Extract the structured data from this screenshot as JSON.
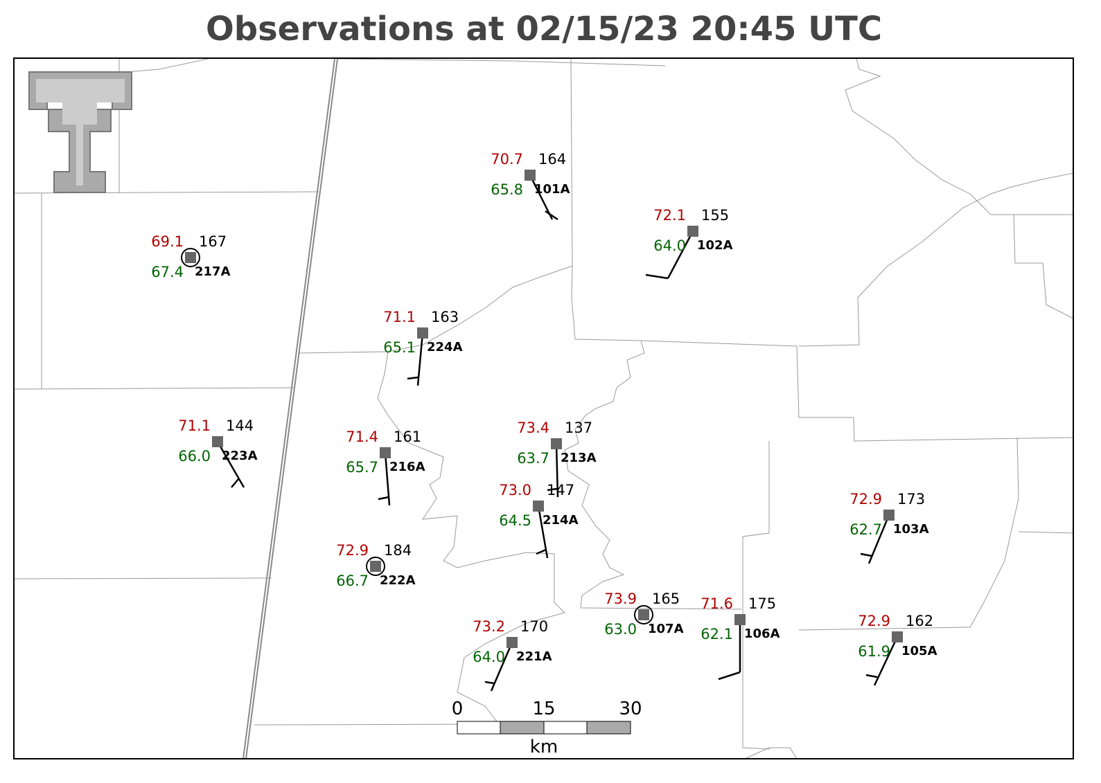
{
  "title": "Observations at 02/15/23 20:45 UTC",
  "stations": [
    {
      "id": "101A",
      "temperature": "70.7",
      "dewpoint": "65.8",
      "pressure": 164
    },
    {
      "id": "102A",
      "temperature": "72.1",
      "dewpoint": "64.0",
      "pressure": 155
    },
    {
      "id": "217A",
      "temperature": "69.1",
      "dewpoint": "67.4",
      "pressure": 167
    },
    {
      "id": "224A",
      "temperature": "71.1",
      "dewpoint": "65.1",
      "pressure": 163
    },
    {
      "id": "223A",
      "temperature": "71.1",
      "dewpoint": "66.0",
      "pressure": 144
    },
    {
      "id": "216A",
      "temperature": "71.4",
      "dewpoint": "65.7",
      "pressure": 161
    },
    {
      "id": "213A",
      "temperature": "73.4",
      "dewpoint": "63.7",
      "pressure": 137
    },
    {
      "id": "214A",
      "temperature": "73.0",
      "dewpoint": "64.5",
      "pressure": 147
    },
    {
      "id": "222A",
      "temperature": "72.9",
      "dewpoint": "66.7",
      "pressure": 184
    },
    {
      "id": "221A",
      "temperature": "73.2",
      "dewpoint": "64.0",
      "pressure": 170
    },
    {
      "id": "107A",
      "temperature": "73.9",
      "dewpoint": "63.0",
      "pressure": 165
    },
    {
      "id": "106A",
      "temperature": "71.6",
      "dewpoint": "62.1",
      "pressure": 175
    },
    {
      "id": "103A",
      "temperature": "72.9",
      "dewpoint": "62.7",
      "pressure": 173
    },
    {
      "id": "105A",
      "temperature": "72.9",
      "dewpoint": "61.9",
      "pressure": 162
    }
  ],
  "scale_bar": {
    "ticks": [
      0,
      15,
      30
    ],
    "unit": "km"
  }
}
